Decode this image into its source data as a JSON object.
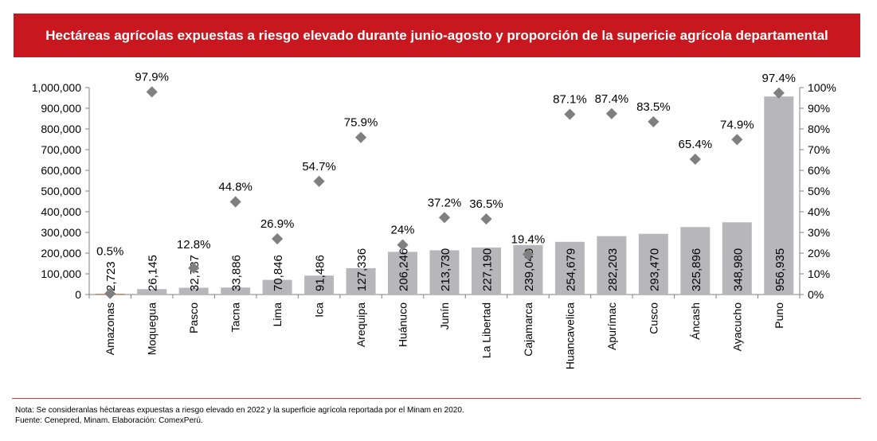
{
  "title": "Hectáreas agrícolas expuestas a riesgo elevado durante junio-agosto y proporción de la supericie agrícola departamental",
  "footer": {
    "note": "Nota: Se consideranlas héctareas expuestas a riesgo elevado en 2022 y la superficie agrícola reportada por el Minam en 2020.",
    "source": "Fuente: Cenepred, Minam. Elaboración: ComexPerú."
  },
  "chart_data": {
    "type": "bar",
    "title": "Hectáreas agrícolas expuestas a riesgo elevado durante junio-agosto y proporción de la supericie agrícola departamental",
    "categories": [
      "Amazonas",
      "Moquegua",
      "Pasco",
      "Tacna",
      "Lima",
      "Ica",
      "Arequipa",
      "Huánuco",
      "Junín",
      "La Libertad",
      "Cajamarca",
      "Huancavelica",
      "Apurímac",
      "Cusco",
      "Áncash",
      "Ayacucho",
      "Puno"
    ],
    "series": [
      {
        "name": "Hectáreas expuestas",
        "type": "bar",
        "axis": "left",
        "values": [
          2723,
          26145,
          32787,
          33886,
          70846,
          91486,
          127336,
          206246,
          213730,
          227190,
          239049,
          254679,
          282203,
          293470,
          325896,
          348980,
          956935
        ],
        "labels": [
          "2,723",
          "26,145",
          "32,787",
          "33,886",
          "70,846",
          "91,486",
          "127,336",
          "206,246",
          "213,730",
          "227,190",
          "239,049",
          "254,679",
          "282,203",
          "293,470",
          "325,896",
          "348,980",
          "956,935"
        ]
      },
      {
        "name": "Proporción de la superficie agrícola",
        "type": "scatter",
        "axis": "right",
        "values": [
          0.5,
          97.9,
          12.8,
          44.8,
          26.9,
          54.7,
          75.9,
          24,
          37.2,
          36.5,
          19.4,
          87.1,
          87.4,
          83.5,
          65.4,
          74.9,
          97.4
        ],
        "labels": [
          "0.5%",
          "97.9%",
          "12.8%",
          "44.8%",
          "26.9%",
          "54.7%",
          "75.9%",
          "24%",
          "37.2%",
          "36.5%",
          "19.4%",
          "87.1%",
          "87.4%",
          "83.5%",
          "65.4%",
          "74.9%",
          "97.4%"
        ]
      }
    ],
    "y_left": {
      "range": [
        0,
        1000000
      ],
      "ticks": [
        "0",
        "100,000",
        "200,000",
        "300,000",
        "400,000",
        "500,000",
        "600,000",
        "700,000",
        "800,000",
        "900,000",
        "1,000,000"
      ]
    },
    "y_right": {
      "range": [
        0,
        100
      ],
      "ticks": [
        "0%",
        "10%",
        "20%",
        "30%",
        "40%",
        "50%",
        "60%",
        "70%",
        "80%",
        "90%",
        "100%"
      ]
    },
    "colors": {
      "bar": "#b7b7bb",
      "first_bar": "#b5552f",
      "marker": "#7f7f7f",
      "title_bg": "#c8171e"
    },
    "grid": false,
    "legend": "none"
  }
}
